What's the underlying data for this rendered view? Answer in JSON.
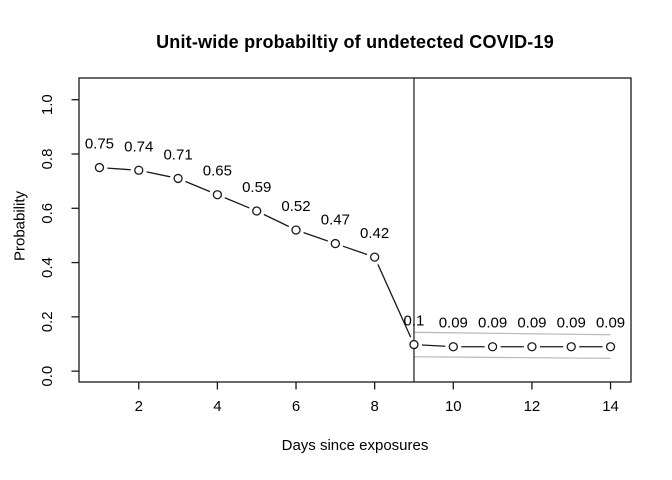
{
  "page": {
    "background": "#ffffff"
  },
  "chart_data": {
    "type": "line",
    "title": "Unit-wide probabiltiy of undetected COVID-19",
    "xlabel": "Days since exposures",
    "ylabel": "Probability",
    "x": [
      1,
      2,
      3,
      4,
      5,
      6,
      7,
      8,
      9,
      10,
      11,
      12,
      13,
      14
    ],
    "y": [
      0.75,
      0.74,
      0.71,
      0.65,
      0.59,
      0.52,
      0.47,
      0.42,
      0.098,
      0.09,
      0.09,
      0.09,
      0.09,
      0.09
    ],
    "point_labels": [
      "0.75",
      "0.74",
      "0.71",
      "0.65",
      "0.59",
      "0.52",
      "0.47",
      "0.42",
      "0.1",
      "0.09",
      "0.09",
      "0.09",
      "0.09",
      "0.09"
    ],
    "x_ticks": [
      2,
      4,
      6,
      8,
      10,
      12,
      14
    ],
    "y_ticks": [
      "0.0",
      "0.2",
      "0.4",
      "0.6",
      "0.8",
      "1.0"
    ],
    "xlim": [
      1,
      14
    ],
    "ylim": [
      0.0,
      1.0
    ],
    "grid": "off",
    "legend": "none",
    "marker": "open-circle",
    "vline_x": 9,
    "ci_upper": {
      "x": [
        9,
        14
      ],
      "y": [
        0.143,
        0.134
      ]
    },
    "ci_lower": {
      "x": [
        9,
        14
      ],
      "y": [
        0.053,
        0.047
      ]
    },
    "colors": {
      "line": "#1a1a1a",
      "marker_stroke": "#1a1a1a",
      "marker_fill": "#ffffff",
      "axis": "#1a1a1a",
      "text": "#000000",
      "ci_line": "#bdbdbd",
      "background": "#ffffff"
    }
  }
}
